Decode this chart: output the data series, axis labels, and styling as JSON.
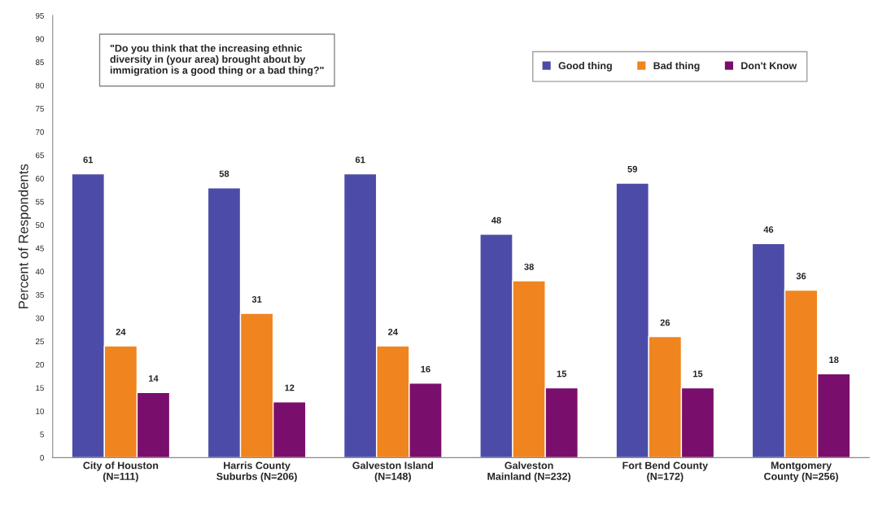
{
  "chart_data": {
    "type": "bar",
    "ylabel": "Percent of Respondents",
    "categories": [
      "City of Houston\n(N=111)",
      "Harris County\nSuburbs (N=206)",
      "Galveston Island\n(N=148)",
      "Galveston\nMainland (N=232)",
      "Fort Bend County\n(N=172)",
      "Montgomery\nCounty (N=256)"
    ],
    "series": [
      {
        "name": "Good thing",
        "color": "#4c4ca8",
        "values": [
          61,
          58,
          61,
          48,
          59,
          46
        ]
      },
      {
        "name": "Bad thing",
        "color": "#f0841e",
        "values": [
          24,
          31,
          24,
          38,
          26,
          36
        ]
      },
      {
        "name": "Don't Know",
        "color": "#7a0e6c",
        "values": [
          14,
          12,
          16,
          15,
          15,
          18
        ]
      }
    ],
    "ylim": [
      0,
      95
    ],
    "yticks": [
      0,
      5,
      10,
      15,
      20,
      25,
      30,
      35,
      40,
      45,
      50,
      55,
      60,
      65,
      70,
      75,
      80,
      85,
      90,
      95
    ],
    "data_labels": true,
    "grid": false,
    "legend": "top right",
    "annotations": [
      "\"Do you think that the increasing ethnic\ndiversity in (your area) brought about by\nimmigration is a good thing or a bad thing?\""
    ]
  }
}
